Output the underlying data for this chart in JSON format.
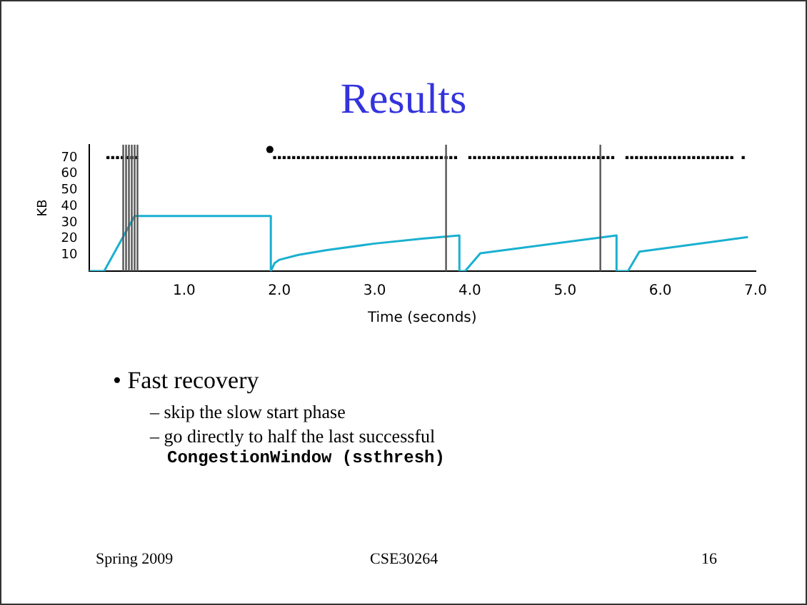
{
  "chart_data": {
    "type": "line",
    "title": "Results",
    "xlabel": "Time (seconds)",
    "ylabel": "KB",
    "xlim": [
      0,
      7
    ],
    "xticks": [
      {
        "value": 1,
        "label": "1.0"
      },
      {
        "value": 2,
        "label": "2.0"
      },
      {
        "value": 3,
        "label": "3.0"
      },
      {
        "value": 4,
        "label": "4.0"
      },
      {
        "value": 5,
        "label": "5.0"
      },
      {
        "value": 6,
        "label": "6.0"
      },
      {
        "value": 7,
        "label": "7.0"
      }
    ],
    "ylim": [
      0,
      78
    ],
    "yticks": [
      10,
      20,
      30,
      40,
      50,
      60,
      70
    ],
    "grid": false,
    "legend": false,
    "series": [
      {
        "color": "#1ab0d0",
        "marker": "none",
        "x": [
          0,
          0.16,
          0.48,
          1.91,
          1.91,
          1.95,
          2.0,
          2.2,
          2.5,
          3.0,
          3.5,
          3.89,
          3.89,
          3.95,
          4.11,
          5.54,
          5.54,
          5.66,
          5.78,
          6.92
        ],
        "values": [
          0,
          0,
          34,
          34,
          0,
          5,
          7,
          10,
          13,
          17,
          20,
          22,
          0,
          0,
          11,
          22,
          0,
          0,
          12,
          21
        ]
      },
      {
        "type": "scatter",
        "color": "#000000",
        "marker": "square",
        "x": [
          0.2,
          0.25,
          0.3,
          0.35,
          0.4,
          0.45,
          0.5,
          1.95,
          2.0,
          2.05,
          2.1,
          2.15,
          2.2,
          2.25,
          2.3,
          2.35,
          2.4,
          2.45,
          2.5,
          2.55,
          2.6,
          2.65,
          2.7,
          2.75,
          2.8,
          2.85,
          2.9,
          2.95,
          3.0,
          3.05,
          3.1,
          3.15,
          3.2,
          3.25,
          3.3,
          3.35,
          3.4,
          3.45,
          3.5,
          3.55,
          3.6,
          3.65,
          3.7,
          3.75,
          3.8,
          3.85,
          4.0,
          4.05,
          4.1,
          4.15,
          4.2,
          4.25,
          4.3,
          4.35,
          4.4,
          4.45,
          4.5,
          4.55,
          4.6,
          4.65,
          4.7,
          4.75,
          4.8,
          4.85,
          4.9,
          4.95,
          5.0,
          5.05,
          5.1,
          5.15,
          5.2,
          5.25,
          5.3,
          5.35,
          5.4,
          5.45,
          5.5,
          5.65,
          5.7,
          5.75,
          5.8,
          5.85,
          5.9,
          5.95,
          6.0,
          6.05,
          6.1,
          6.15,
          6.2,
          6.25,
          6.3,
          6.35,
          6.4,
          6.45,
          6.5,
          6.55,
          6.6,
          6.65,
          6.7,
          6.75,
          6.87
        ],
        "values": [
          70,
          70,
          70,
          70,
          70,
          70,
          70,
          70,
          70,
          70,
          70,
          70,
          70,
          70,
          70,
          70,
          70,
          70,
          70,
          70,
          70,
          70,
          70,
          70,
          70,
          70,
          70,
          70,
          70,
          70,
          70,
          70,
          70,
          70,
          70,
          70,
          70,
          70,
          70,
          70,
          70,
          70,
          70,
          70,
          70,
          70,
          70,
          70,
          70,
          70,
          70,
          70,
          70,
          70,
          70,
          70,
          70,
          70,
          70,
          70,
          70,
          70,
          70,
          70,
          70,
          70,
          70,
          70,
          70,
          70,
          70,
          70,
          70,
          70,
          70,
          70,
          70,
          70,
          70,
          70,
          70,
          70,
          70,
          70,
          70,
          70,
          70,
          70,
          70,
          70,
          70,
          70,
          70,
          70,
          70,
          70,
          70,
          70,
          70,
          70,
          70
        ]
      },
      {
        "type": "scatter",
        "color": "#000000",
        "marker": "circle",
        "x": [
          1.9
        ],
        "values": [
          75
        ]
      }
    ],
    "ref_lines": [
      {
        "axis": "x",
        "value": 0.36,
        "color": "#555555"
      },
      {
        "axis": "x",
        "value": 0.39,
        "color": "#555555"
      },
      {
        "axis": "x",
        "value": 0.42,
        "color": "#555555"
      },
      {
        "axis": "x",
        "value": 0.45,
        "color": "#555555"
      },
      {
        "axis": "x",
        "value": 0.48,
        "color": "#555555"
      },
      {
        "axis": "x",
        "value": 0.51,
        "color": "#555555"
      },
      {
        "axis": "x",
        "value": 3.75,
        "color": "#555555"
      },
      {
        "axis": "x",
        "value": 5.37,
        "color": "#555555"
      }
    ],
    "annotations": [
      "• Fast recovery",
      "– skip the slow start phase",
      "– go directly to half the last successful",
      "CongestionWindow (ssthresh)",
      "Spring 2009",
      "CSE30264",
      "16"
    ]
  }
}
